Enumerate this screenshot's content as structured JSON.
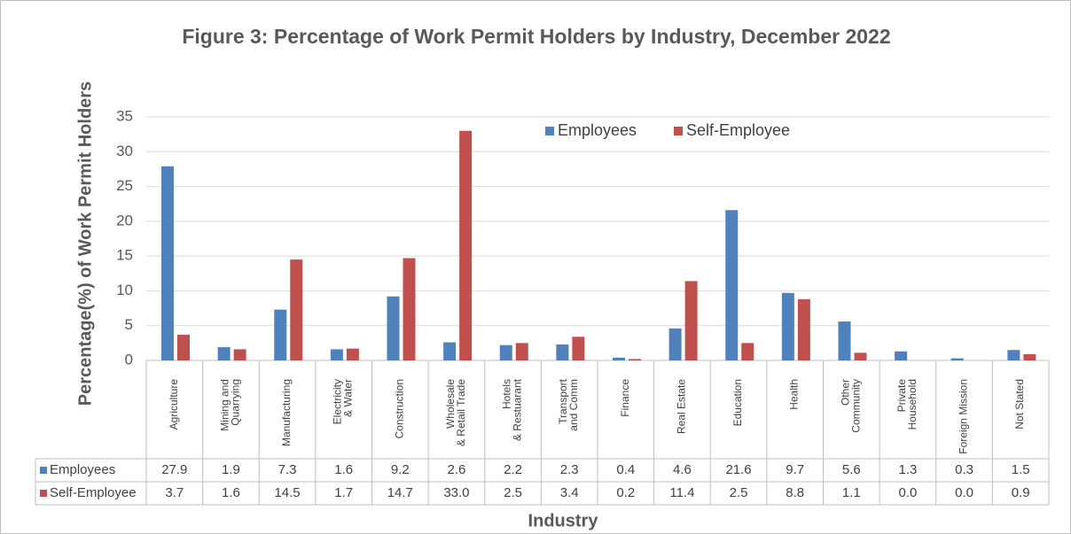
{
  "chart_data": {
    "type": "bar",
    "title": "Figure 3: Percentage of Work Permit Holders by Industry, December 2022",
    "x_label": "Industry",
    "y_label": "Percentage(%) of Work Permit Holders",
    "categories": [
      "Agriculture",
      "Mining and\nQuarrying",
      "Manufacturing",
      "Electricity\n& Water",
      "Construction",
      "Wholesale\n& Retail Trade",
      "Hotels\n& Restuarant",
      "Transport\nand Comm",
      "Finance",
      "Real Estate",
      "Education",
      "Health",
      "Other\nCommunity",
      "Private\nHousehold",
      "Foreign Mission",
      "Not Stated"
    ],
    "series": [
      {
        "name": "Employees",
        "color": "#4f81bd",
        "values": [
          27.9,
          1.9,
          7.3,
          1.6,
          9.2,
          2.6,
          2.2,
          2.3,
          0.4,
          4.6,
          21.6,
          9.7,
          5.6,
          1.3,
          0.3,
          1.5
        ],
        "value_labels": [
          "27.9",
          "1.9",
          "7.3",
          "1.6",
          "9.2",
          "2.6",
          "2.2",
          "2.3",
          "0.4",
          "4.6",
          "21.6",
          "9.7",
          "5.6",
          "1.3",
          "0.3",
          "1.5"
        ]
      },
      {
        "name": "Self-Employee",
        "color": "#c0504d",
        "values": [
          3.7,
          1.6,
          14.5,
          1.7,
          14.7,
          33.0,
          2.5,
          3.4,
          0.2,
          11.4,
          2.5,
          8.8,
          1.1,
          0.0,
          0.0,
          0.9
        ],
        "value_labels": [
          "3.7",
          "1.6",
          "14.5",
          "1.7",
          "14.7",
          "33.0",
          "2.5",
          "3.4",
          "0.2",
          "11.4",
          "2.5",
          "8.8",
          "1.1",
          "0.0",
          "0.0",
          "0.9"
        ]
      }
    ],
    "ylim": [
      0,
      35
    ],
    "yticks": [
      0,
      5,
      10,
      15,
      20,
      25,
      30,
      35
    ],
    "grid": true,
    "legend": "top"
  }
}
